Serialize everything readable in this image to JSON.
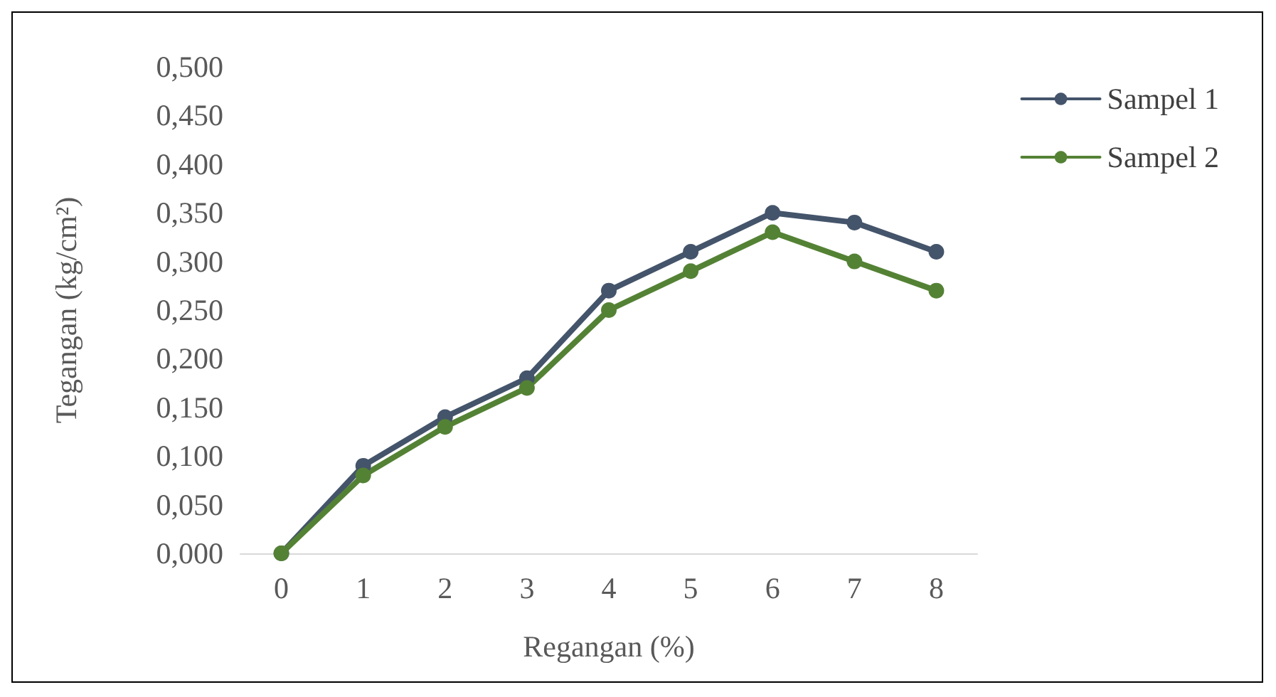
{
  "chart_data": {
    "type": "line",
    "xlabel": "Regangan (%)",
    "ylabel": "Tegangan (kg/cm²)",
    "categories": [
      "0",
      "1",
      "2",
      "3",
      "4",
      "5",
      "6",
      "7",
      "8"
    ],
    "series": [
      {
        "name": "Sampel 1",
        "color": "#44546a",
        "values": [
          0,
          0.09,
          0.14,
          0.18,
          0.27,
          0.31,
          0.35,
          0.34,
          0.31
        ]
      },
      {
        "name": "Sampel 2",
        "color": "#548235",
        "values": [
          0,
          0.08,
          0.13,
          0.17,
          0.25,
          0.29,
          0.33,
          0.3,
          0.27
        ]
      }
    ],
    "ylim": [
      0,
      0.5
    ],
    "yticks": [
      {
        "value": 0,
        "label": "0,000"
      },
      {
        "value": 0.05,
        "label": "0,050"
      },
      {
        "value": 0.1,
        "label": "0,100"
      },
      {
        "value": 0.15,
        "label": "0,150"
      },
      {
        "value": 0.2,
        "label": "0,200"
      },
      {
        "value": 0.25,
        "label": "0,250"
      },
      {
        "value": 0.3,
        "label": "0,300"
      },
      {
        "value": 0.35,
        "label": "0,350"
      },
      {
        "value": 0.4,
        "label": "0,400"
      },
      {
        "value": 0.45,
        "label": "0,450"
      },
      {
        "value": 0.5,
        "label": "0,500"
      }
    ],
    "grid": false,
    "legend": "top right",
    "marker": "circle",
    "line_style": "solid"
  }
}
